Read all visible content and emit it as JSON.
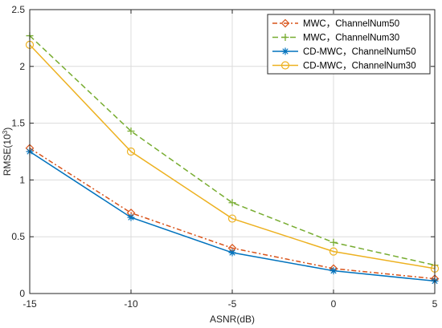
{
  "chart_data": {
    "type": "line",
    "xlabel": "ASNR(dB)",
    "ylabel": "RMSE(10",
    "ylabel_sup": "3",
    "ylabel_close": ")",
    "x": [
      -15,
      -10,
      -5,
      0,
      5
    ],
    "xlim": [
      -15,
      5
    ],
    "ylim": [
      0,
      2.5
    ],
    "xticks": [
      "-15",
      "-10",
      "-5",
      "0",
      "5"
    ],
    "yticks": [
      "0",
      "0.5",
      "1",
      "1.5",
      "2",
      "2.5"
    ],
    "grid": true,
    "legend_position": "top-right",
    "series": [
      {
        "name": "MWC，ChannelNum50",
        "values": [
          1.28,
          0.71,
          0.4,
          0.22,
          0.13
        ],
        "color": "#D95319",
        "dash": "6,3,2,3",
        "marker": "diamond"
      },
      {
        "name": "MWC，ChannelNum30",
        "values": [
          2.27,
          1.43,
          0.8,
          0.45,
          0.25
        ],
        "color": "#77AC30",
        "dash": "7,4",
        "marker": "plus"
      },
      {
        "name": "CD-MWC，ChannelNum50",
        "values": [
          1.25,
          0.67,
          0.36,
          0.2,
          0.11
        ],
        "color": "#0072BD",
        "dash": "",
        "marker": "asterisk"
      },
      {
        "name": "CD-MWC，ChannelNum30",
        "values": [
          2.19,
          1.25,
          0.66,
          0.37,
          0.22
        ],
        "color": "#EDB120",
        "dash": "",
        "marker": "circle"
      }
    ]
  }
}
